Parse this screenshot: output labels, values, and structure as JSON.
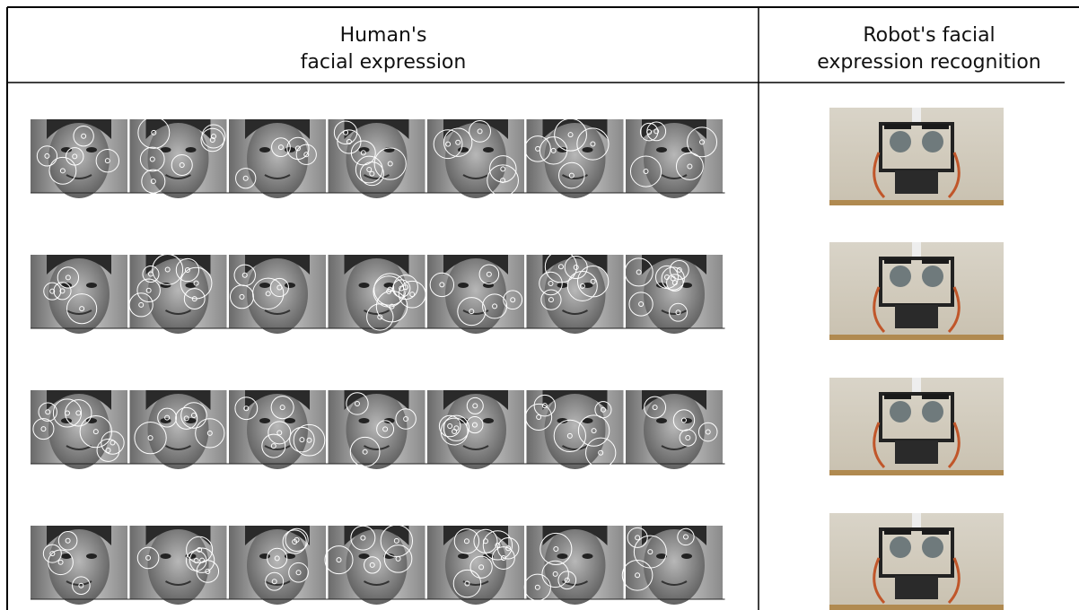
{
  "header": {
    "columns": [
      {
        "lines": [
          "Human's",
          "facial expression"
        ]
      },
      {
        "lines": [
          "Robot's facial",
          "expression recognition"
        ]
      }
    ]
  }
}
